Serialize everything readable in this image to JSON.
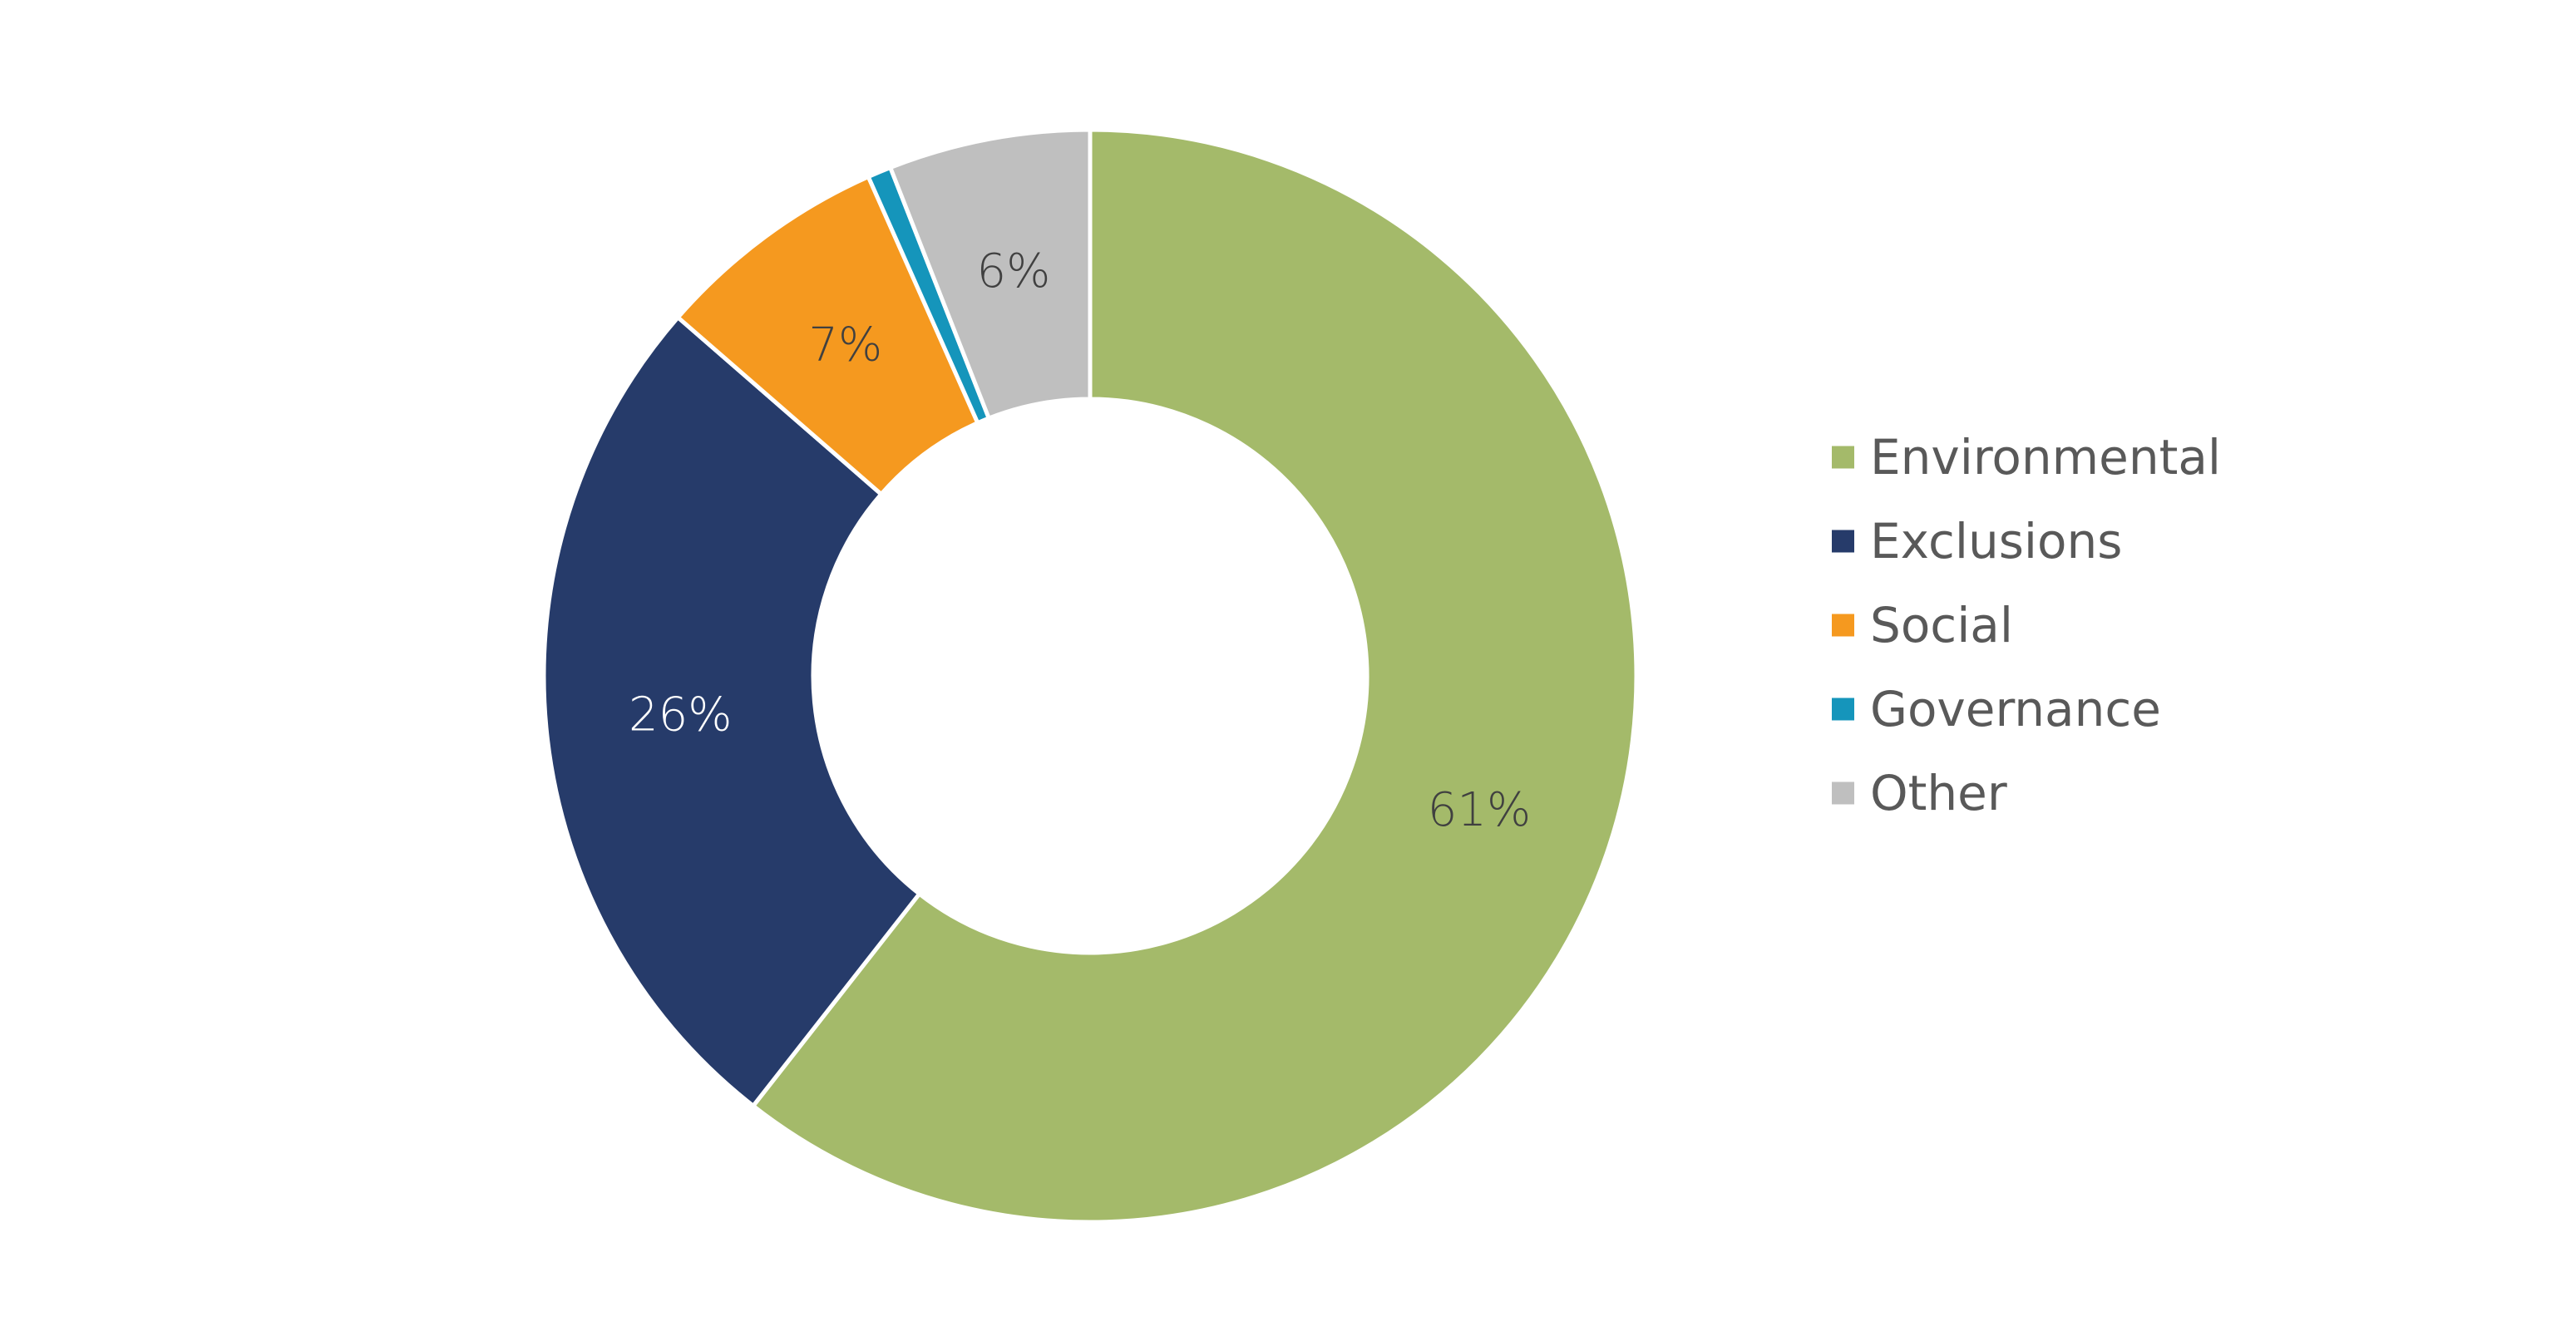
{
  "chart_data": {
    "type": "pie",
    "variant": "donut",
    "title": "",
    "legend_position": "right",
    "series": [
      {
        "name": "Environmental",
        "value": 61,
        "label": "61%",
        "color": "#A4BA6A",
        "label_color": "#404040"
      },
      {
        "name": "Exclusions",
        "value": 26,
        "label": "26%",
        "color": "#263B6A",
        "label_color": "#FFFFFF"
      },
      {
        "name": "Social",
        "value": 7,
        "label": "7%",
        "color": "#F5991F",
        "label_color": "#404040"
      },
      {
        "name": "Governance",
        "value": 0.7,
        "label": "",
        "color": "#1595BB",
        "label_color": "#404040"
      },
      {
        "name": "Other",
        "value": 6,
        "label": "6%",
        "color": "#BFBFBF",
        "label_color": "#404040"
      }
    ]
  }
}
